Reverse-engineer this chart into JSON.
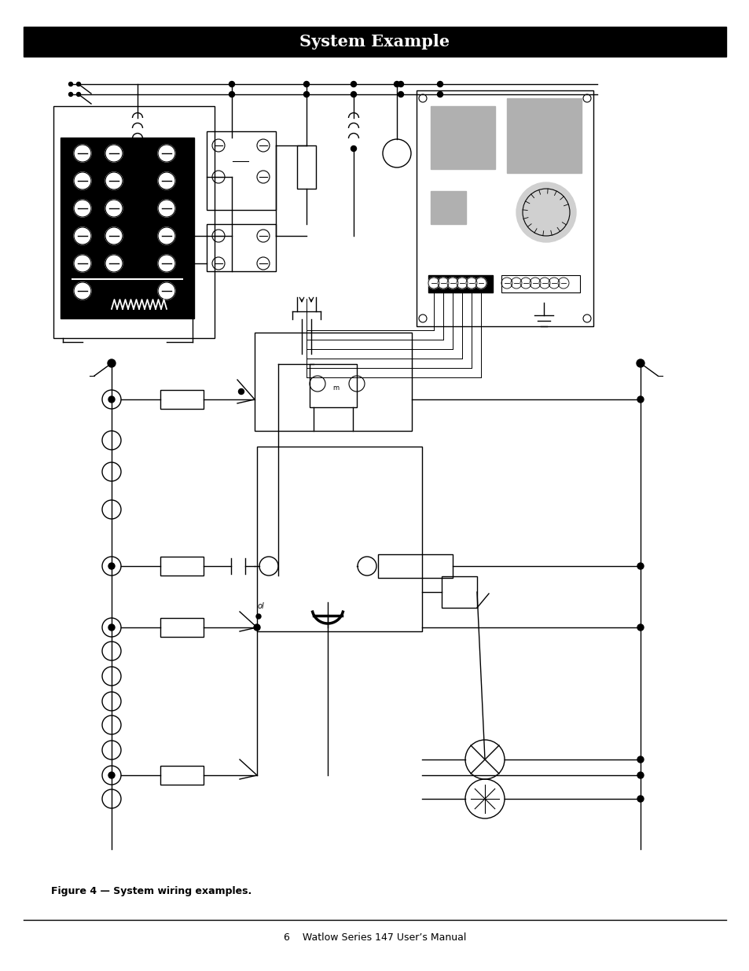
{
  "title": "System Example",
  "title_bg": "#000000",
  "title_color": "#ffffff",
  "title_fontsize": 15,
  "page_bg": "#ffffff",
  "footer_text": "6    Watlow Series 147 User’s Manual",
  "caption_text": "Figure 4 — System wiring examples.",
  "caption_fontsize": 9,
  "footer_fontsize": 9,
  "grey": "#b0b0b0",
  "light_grey": "#d0d0d0"
}
